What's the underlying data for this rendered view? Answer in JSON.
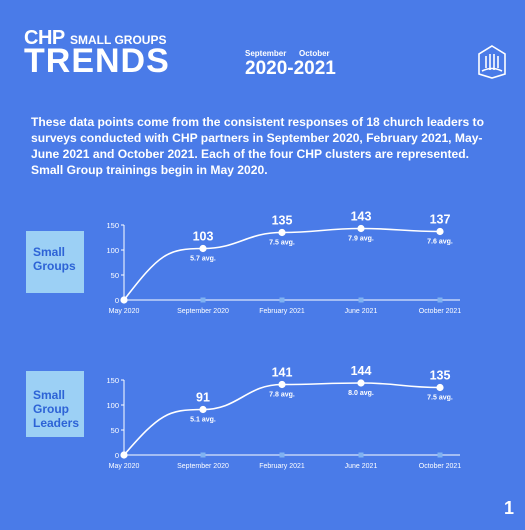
{
  "header": {
    "brand": "CHP",
    "subtitle": "SMALL GROUPS",
    "title": "TRENDS",
    "date_start_label": "September",
    "date_end_label": "October",
    "date_range": "2020-2021"
  },
  "intro": "These data points come from the consistent responses of 18 church leaders to surveys conducted with CHP partners in September 2020, February 2021, May-June 2021 and October 2021. Each of the four CHP clusters are represented. Small Group trainings begin in May 2020.",
  "page_number": "1",
  "colors": {
    "background": "#4a7be8",
    "label_box": "#9cd0f5",
    "label_text": "#2d63d6",
    "line": "#ffffff",
    "axis_marker": "#7fb2f2"
  },
  "chart_data": [
    {
      "type": "line",
      "label_lines": [
        "Small",
        "Groups"
      ],
      "categories": [
        "May 2020",
        "September 2020",
        "February 2021",
        "June 2021",
        "October 2021"
      ],
      "values": [
        0,
        103,
        135,
        143,
        137
      ],
      "data_labels": [
        "",
        "103",
        "135",
        "143",
        "137"
      ],
      "avg_labels": [
        "",
        "5.7 avg.",
        "7.5 avg.",
        "7.9 avg.",
        "7.6 avg."
      ],
      "ylim": [
        0,
        150
      ],
      "yticks": [
        "0",
        "50",
        "100",
        "150"
      ]
    },
    {
      "type": "line",
      "label_lines": [
        "Small",
        "Group",
        "Leaders"
      ],
      "categories": [
        "May 2020",
        "September 2020",
        "February 2021",
        "June 2021",
        "October 2021"
      ],
      "values": [
        0,
        91,
        141,
        144,
        135
      ],
      "data_labels": [
        "",
        "91",
        "141",
        "144",
        "135"
      ],
      "avg_labels": [
        "",
        "5.1 avg.",
        "7.8 avg.",
        "8.0 avg.",
        "7.5 avg."
      ],
      "ylim": [
        0,
        150
      ],
      "yticks": [
        "0",
        "50",
        "100",
        "150"
      ]
    }
  ]
}
